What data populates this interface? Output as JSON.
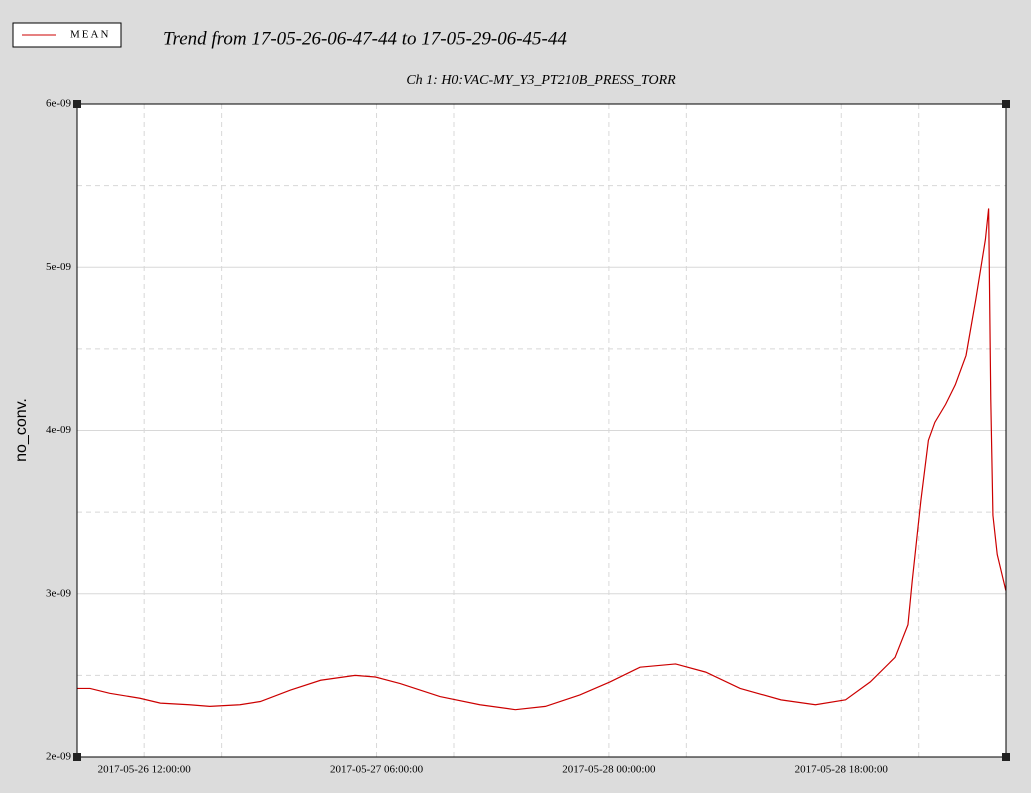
{
  "chart_data": {
    "type": "line",
    "title": "Trend from 17-05-26-06-47-44 to 17-05-29-06-45-44",
    "subtitle": "Ch 1: H0:VAC-MY_Y3_PT210B_PRESS_TORR",
    "ylabel": "no_conv.",
    "x": [
      "2017-05-26 06:48:00",
      "2017-05-26 07:48:00",
      "2017-05-26 09:20:00",
      "2017-05-26 11:40:00",
      "2017-05-26 13:15:00",
      "2017-05-26 15:30:00",
      "2017-05-26 17:05:00",
      "2017-05-26 19:25:00",
      "2017-05-26 21:00:00",
      "2017-05-26 23:20:00",
      "2017-05-27 01:40:00",
      "2017-05-27 04:20:00",
      "2017-05-27 05:55:00",
      "2017-05-27 07:50:00",
      "2017-05-27 10:55:00",
      "2017-05-27 14:00:00",
      "2017-05-27 16:45:00",
      "2017-05-27 19:05:00",
      "2017-05-27 21:45:00",
      "2017-05-28 00:05:00",
      "2017-05-28 02:25:00",
      "2017-05-28 05:10:00",
      "2017-05-28 07:30:00",
      "2017-05-28 10:10:00",
      "2017-05-28 13:20:00",
      "2017-05-28 16:00:00",
      "2017-05-28 18:20:00",
      "2017-05-28 20:15:00",
      "2017-05-28 22:10:00",
      "2017-05-28 23:10:00",
      "2017-05-28 23:30:00",
      "2017-05-29 00:10:00",
      "2017-05-29 00:45:00",
      "2017-05-29 01:15:00",
      "2017-05-29 02:05:00",
      "2017-05-29 02:50:00",
      "2017-05-29 03:40:00",
      "2017-05-29 04:25:00",
      "2017-05-29 05:10:00",
      "2017-05-29 05:25:00",
      "2017-05-29 05:35:00",
      "2017-05-29 05:45:00",
      "2017-05-29 06:05:00",
      "2017-05-29 06:45:00"
    ],
    "series": [
      {
        "name": "MEAN",
        "color": "#cc0000",
        "values": [
          2.42e-09,
          2.42e-09,
          2.39e-09,
          2.36e-09,
          2.33e-09,
          2.32e-09,
          2.31e-09,
          2.32e-09,
          2.34e-09,
          2.41e-09,
          2.47e-09,
          2.5e-09,
          2.49e-09,
          2.45e-09,
          2.37e-09,
          2.32e-09,
          2.29e-09,
          2.31e-09,
          2.38e-09,
          2.46e-09,
          2.55e-09,
          2.57e-09,
          2.52e-09,
          2.42e-09,
          2.35e-09,
          2.32e-09,
          2.35e-09,
          2.46e-09,
          2.61e-09,
          2.81e-09,
          3.08e-09,
          3.57e-09,
          3.94e-09,
          4.05e-09,
          4.16e-09,
          4.28e-09,
          4.46e-09,
          4.8e-09,
          5.17e-09,
          5.36e-09,
          4.19e-09,
          3.48e-09,
          3.24e-09,
          3.02e-09
        ]
      }
    ],
    "xlim": [
      "2017-05-26 06:47:44",
      "2017-05-29 06:45:44"
    ],
    "xticks": [
      "2017-05-26 12:00:00",
      {
        "value": "2017-05-26 18:00:00",
        "label": null
      },
      "2017-05-27 06:00:00",
      {
        "value": "2017-05-27 12:00:00",
        "label": null
      },
      "2017-05-28 00:00:00",
      {
        "value": "2017-05-28 06:00:00",
        "label": null
      },
      "2017-05-28 18:00:00",
      {
        "value": "2017-05-29 00:00:00",
        "label": null
      }
    ],
    "ylim": [
      2e-09,
      6e-09
    ],
    "yticks": [
      {
        "value": 2e-09,
        "label": "2e-09"
      },
      {
        "value": 2.5e-09,
        "label": null
      },
      {
        "value": 3e-09,
        "label": "3e-09"
      },
      {
        "value": 3.5e-09,
        "label": null
      },
      {
        "value": 4e-09,
        "label": "4e-09"
      },
      {
        "value": 4.5e-09,
        "label": null
      },
      {
        "value": 5e-09,
        "label": "5e-09"
      },
      {
        "value": 5.5e-09,
        "label": null
      },
      {
        "value": 6e-09,
        "label": "6e-09"
      }
    ],
    "grid": true
  }
}
